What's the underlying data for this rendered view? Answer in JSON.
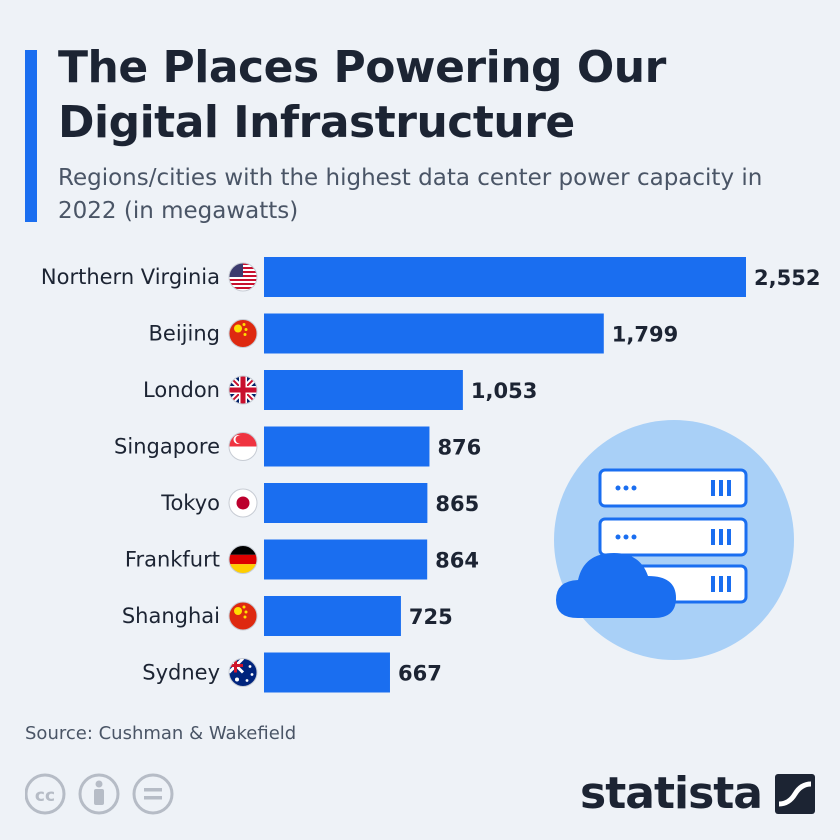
{
  "header": {
    "title": "The Places Powering Our Digital Infrastructure",
    "subtitle": "Regions/cities with the highest data center power capacity in 2022 (in megawatts)"
  },
  "chart_data": {
    "type": "bar",
    "orientation": "horizontal",
    "title": "The Places Powering Our Digital Infrastructure",
    "subtitle": "Regions/cities with the highest data center power capacity in 2022 (in megawatts)",
    "categories": [
      "Northern Virginia",
      "Beijing",
      "London",
      "Singapore",
      "Tokyo",
      "Frankfurt",
      "Shanghai",
      "Sydney"
    ],
    "values": [
      2552,
      1799,
      1053,
      876,
      865,
      864,
      725,
      667
    ],
    "value_labels": [
      "2,552",
      "1,799",
      "1,053",
      "876",
      "865",
      "864",
      "725",
      "667"
    ],
    "flags": [
      "us-flag-icon",
      "china-flag-icon",
      "uk-flag-icon",
      "singapore-flag-icon",
      "japan-flag-icon",
      "germany-flag-icon",
      "china-flag-icon",
      "australia-flag-icon"
    ],
    "xlim": [
      0,
      2552
    ],
    "grid": false,
    "bar_color": "#1a6ef0"
  },
  "footer": {
    "source": "Source: Cushman & Wakefield",
    "brand": "statista"
  },
  "colors": {
    "background": "#eef2f7",
    "accent": "#1a6ef0",
    "text": "#1c2433"
  }
}
